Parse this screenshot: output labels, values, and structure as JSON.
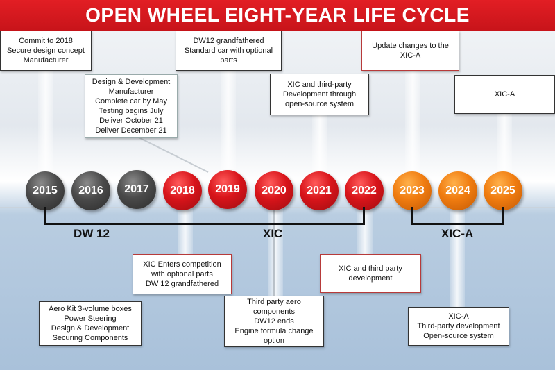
{
  "title": "OPEN WHEEL EIGHT-YEAR LIFE CYCLE",
  "years": [
    {
      "label": "2015",
      "color": "gray"
    },
    {
      "label": "2016",
      "color": "gray"
    },
    {
      "label": "2017",
      "color": "gray"
    },
    {
      "label": "2018",
      "color": "red"
    },
    {
      "label": "2019",
      "color": "red"
    },
    {
      "label": "2020",
      "color": "red"
    },
    {
      "label": "2021",
      "color": "red"
    },
    {
      "label": "2022",
      "color": "red"
    },
    {
      "label": "2023",
      "color": "orange"
    },
    {
      "label": "2024",
      "color": "orange"
    },
    {
      "label": "2025",
      "color": "orange"
    }
  ],
  "groups": {
    "dw12": "DW 12",
    "xic": "XIC",
    "xica": "XIC-A"
  },
  "boxes": {
    "commit_2018": [
      "Commit to 2018",
      "Secure design concept",
      "Manufacturer"
    ],
    "design_development": [
      "Design & Development",
      "Manufacturer",
      "Complete car by May",
      "Testing begins July",
      "Deliver October 21",
      "Deliver December 21"
    ],
    "dw12_grandfathered": [
      "DW12 grandfathered",
      "Standard car with optional",
      "parts"
    ],
    "xic_third_party": [
      "XIC and third-party",
      "Development through",
      "open-source system"
    ],
    "update_changes": [
      "Update changes to the",
      "XIC-A"
    ],
    "xica_top": [
      "XIC-A"
    ],
    "xic_enters": [
      "XIC Enters competition",
      "with optional parts",
      "DW 12 grandfathered"
    ],
    "aero_kit": [
      "Aero Kit 3-volume boxes",
      "Power Steering",
      "Design & Development",
      "Securing Components"
    ],
    "third_party_aero": [
      "Third party aero",
      "components",
      "DW12 ends",
      "Engine formula change",
      "option"
    ],
    "xic_third_party_dev": [
      "XIC and third party",
      "development"
    ],
    "xica_bottom": [
      "XIC-A",
      "Third-party development",
      "Open-source system"
    ]
  },
  "colors": {
    "title_red": "#d81a20",
    "past_gray": "#4a4a4a",
    "current_red": "#d8141a",
    "future_orange": "#f07c10"
  }
}
